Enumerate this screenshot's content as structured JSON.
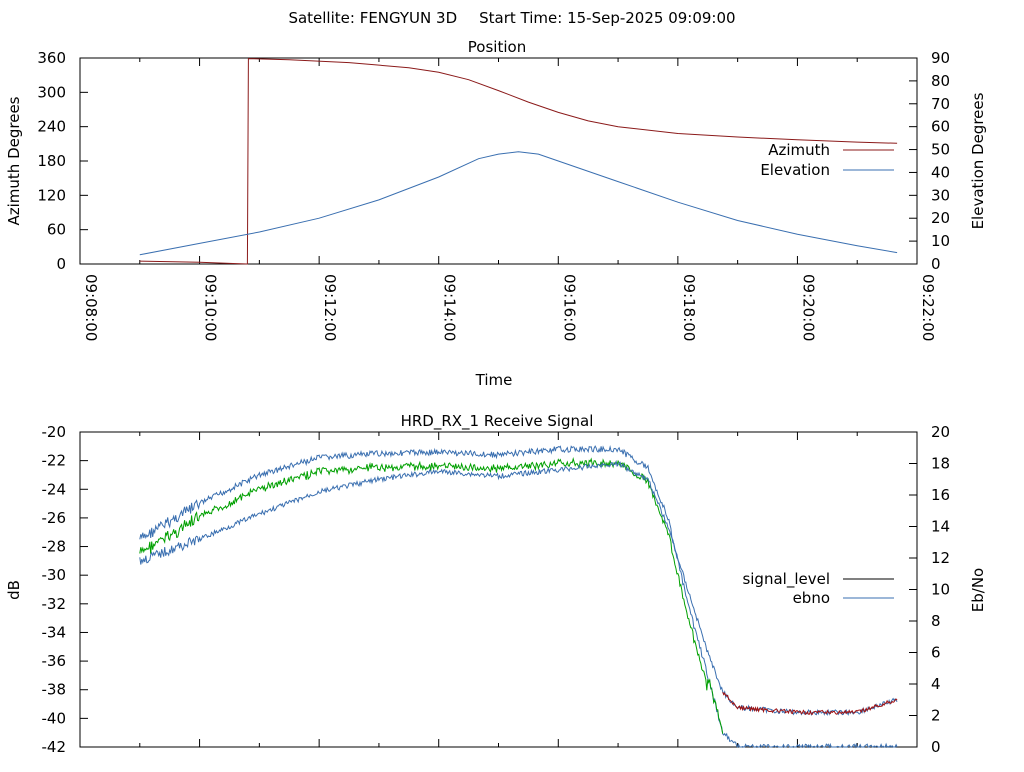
{
  "header": {
    "satellite": "Satellite: FENGYUN 3D",
    "start_time": "Start Time: 15-Sep-2025 09:09:00"
  },
  "colors": {
    "azimuth": "#8b1a1a",
    "elevation": "#3a6fb0",
    "signal_level": "#000000",
    "ebno": "#3a6fb0",
    "green_trace": "#00a000",
    "red_trace": "#a01010"
  },
  "chart_data": [
    {
      "type": "line",
      "title": "Position",
      "xlabel": "Time",
      "ylabel": "Azimuth Degrees",
      "y2label": "Elevation Degrees",
      "xlim": [
        "09:08:00",
        "09:22:00"
      ],
      "xticks": [
        "09:08:00",
        "09:10:00",
        "09:12:00",
        "09:14:00",
        "09:16:00",
        "09:18:00",
        "09:20:00",
        "09:22:00"
      ],
      "ylim": [
        0,
        360
      ],
      "yticks": [
        "0",
        "60",
        "120",
        "180",
        "240",
        "300",
        "360"
      ],
      "y2lim": [
        0,
        90
      ],
      "y2ticks": [
        "0",
        "10",
        "20",
        "30",
        "40",
        "50",
        "60",
        "70",
        "80",
        "90"
      ],
      "legend": "right",
      "series": [
        {
          "name": "Azimuth",
          "axis": "y",
          "x": [
            "09:09:00",
            "09:10:00",
            "09:10:30",
            "09:10:48",
            "09:10:49",
            "09:11:30",
            "09:12:30",
            "09:13:30",
            "09:14:00",
            "09:14:30",
            "09:15:00",
            "09:15:30",
            "09:16:00",
            "09:16:30",
            "09:17:00",
            "09:18:00",
            "09:19:00",
            "09:20:00",
            "09:21:00",
            "09:21:40"
          ],
          "values": [
            5,
            3,
            1,
            0,
            359,
            357,
            352,
            343,
            335,
            322,
            303,
            283,
            265,
            250,
            240,
            228,
            222,
            217,
            213,
            211
          ]
        },
        {
          "name": "Elevation",
          "axis": "y2",
          "x": [
            "09:09:00",
            "09:10:00",
            "09:11:00",
            "09:12:00",
            "09:13:00",
            "09:14:00",
            "09:14:40",
            "09:15:00",
            "09:15:20",
            "09:15:40",
            "09:16:00",
            "09:17:00",
            "09:18:00",
            "09:19:00",
            "09:20:00",
            "09:21:00",
            "09:21:40"
          ],
          "values": [
            4,
            9,
            14,
            20,
            28,
            38,
            46,
            48,
            49,
            48,
            45,
            36,
            27,
            19,
            13,
            8,
            5
          ]
        }
      ]
    },
    {
      "type": "line",
      "title": "HRD_RX_1 Receive Signal",
      "ylabel": "dB",
      "y2label": "Eb/No",
      "ylim": [
        -42,
        -20
      ],
      "yticks": [
        "-42",
        "-40",
        "-38",
        "-36",
        "-34",
        "-32",
        "-30",
        "-28",
        "-26",
        "-24",
        "-22",
        "-20"
      ],
      "y2lim": [
        0,
        20
      ],
      "y2ticks": [
        "0",
        "2",
        "4",
        "6",
        "8",
        "10",
        "12",
        "14",
        "16",
        "18",
        "20"
      ],
      "legend": "right",
      "series": [
        {
          "name": "signal_level",
          "axis": "y",
          "x": [
            "09:09:00",
            "09:10:00",
            "09:11:00",
            "09:12:00",
            "09:13:00",
            "09:14:00",
            "09:15:00",
            "09:16:00",
            "09:17:00",
            "09:17:30",
            "09:17:50",
            "09:18:10",
            "09:18:30",
            "09:18:45",
            "09:19:00",
            "09:20:00",
            "09:21:00",
            "09:21:40"
          ],
          "values": [
            -27.5,
            -25,
            -23,
            -21.8,
            -21.5,
            -21.4,
            -21.6,
            -21.2,
            -21.2,
            -22.5,
            -26,
            -32,
            -37,
            -41,
            -42,
            -42,
            -42,
            -42
          ]
        },
        {
          "name": "ebno",
          "axis": "y2",
          "x": [
            "09:09:00",
            "09:10:00",
            "09:11:00",
            "09:12:00",
            "09:13:00",
            "09:14:00",
            "09:15:00",
            "09:16:00",
            "09:17:00",
            "09:17:30",
            "09:17:50",
            "09:18:10",
            "09:18:30",
            "09:18:45",
            "09:19:00",
            "09:20:00",
            "09:21:00",
            "09:21:40"
          ],
          "values": [
            11.8,
            13.2,
            14.8,
            16.2,
            17.0,
            17.5,
            17.2,
            17.6,
            18.0,
            17.0,
            14.0,
            10.0,
            6.0,
            3.5,
            2.5,
            2.2,
            2.2,
            3.0
          ]
        }
      ]
    }
  ]
}
